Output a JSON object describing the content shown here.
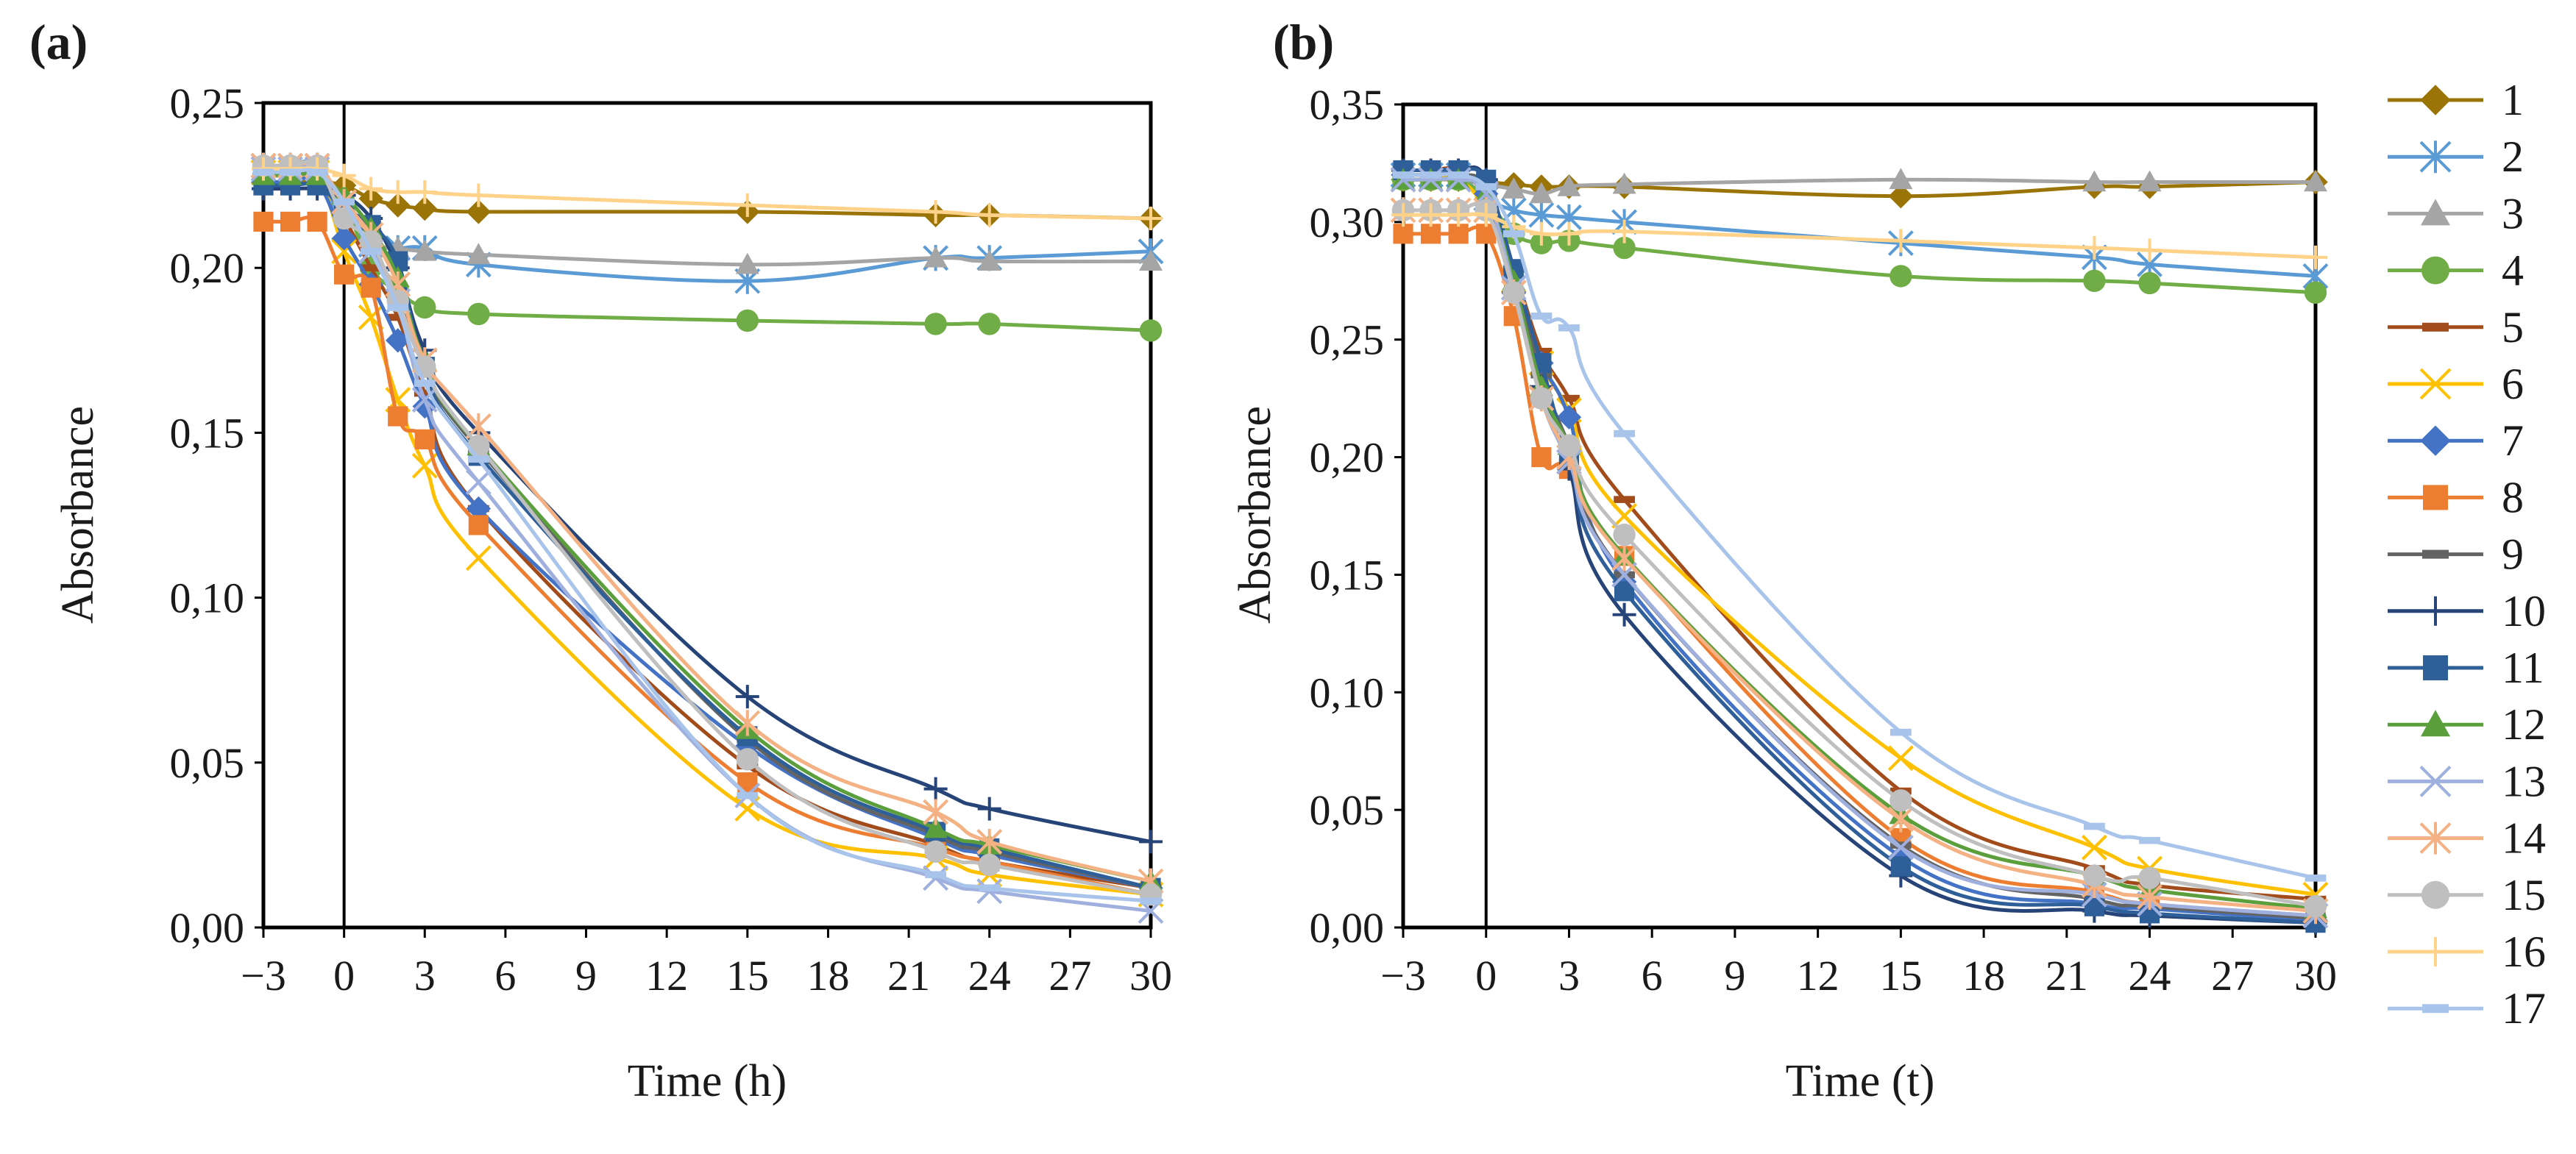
{
  "series_styles": [
    {
      "name": "1",
      "color": "#9a7407",
      "marker": "diamond"
    },
    {
      "name": "2",
      "color": "#5b9bd5",
      "marker": "asterisk"
    },
    {
      "name": "3",
      "color": "#a5a5a5",
      "marker": "triangle"
    },
    {
      "name": "4",
      "color": "#70ad47",
      "marker": "circle"
    },
    {
      "name": "5",
      "color": "#a24c1c",
      "marker": "dash"
    },
    {
      "name": "6",
      "color": "#ffc000",
      "marker": "x"
    },
    {
      "name": "7",
      "color": "#4472c4",
      "marker": "diamond"
    },
    {
      "name": "8",
      "color": "#ed7d31",
      "marker": "square"
    },
    {
      "name": "9",
      "color": "#636363",
      "marker": "dash"
    },
    {
      "name": "10",
      "color": "#264478",
      "marker": "plus"
    },
    {
      "name": "11",
      "color": "#2e5f98",
      "marker": "square"
    },
    {
      "name": "12",
      "color": "#5b9f3d",
      "marker": "triangle"
    },
    {
      "name": "13",
      "color": "#9fb0de",
      "marker": "x"
    },
    {
      "name": "14",
      "color": "#f4b183",
      "marker": "asterisk"
    },
    {
      "name": "15",
      "color": "#bfbfbf",
      "marker": "circle"
    },
    {
      "name": "16",
      "color": "#ffd28a",
      "marker": "plus"
    },
    {
      "name": "17",
      "color": "#a9c4ea",
      "marker": "dash"
    }
  ],
  "chart_data": [
    {
      "panel": "(a)",
      "type": "line",
      "xlabel": "Time (h)",
      "ylabel": "Absorbance",
      "xlim": [
        -3,
        30
      ],
      "ylim": [
        0,
        0.25
      ],
      "xticks": [
        -3,
        0,
        3,
        6,
        9,
        12,
        15,
        18,
        21,
        24,
        27,
        30
      ],
      "xtick_labels": [
        "−3",
        "0",
        "3",
        "6",
        "9",
        "12",
        "15",
        "18",
        "21",
        "24",
        "27",
        "30"
      ],
      "yticks": [
        0,
        0.05,
        0.1,
        0.15,
        0.2,
        0.25
      ],
      "ytick_labels": [
        "0,00",
        "0,05",
        "0,10",
        "0,15",
        "0,20",
        "0,25"
      ],
      "vline_x": 0,
      "x": [
        -3,
        -2,
        -1,
        0,
        1,
        2,
        3,
        5,
        15,
        22,
        24,
        30
      ],
      "series": [
        {
          "name": "1",
          "values": [
            0.226,
            0.226,
            0.226,
            0.225,
            0.221,
            0.219,
            0.218,
            0.217,
            0.217,
            0.216,
            0.216,
            0.215
          ]
        },
        {
          "name": "2",
          "values": [
            0.231,
            0.231,
            0.231,
            0.212,
            0.207,
            0.206,
            0.206,
            0.201,
            0.196,
            0.203,
            0.203,
            0.205
          ]
        },
        {
          "name": "3",
          "values": [
            0.23,
            0.23,
            0.23,
            0.22,
            0.208,
            0.206,
            0.205,
            0.204,
            0.201,
            0.203,
            0.202,
            0.202
          ]
        },
        {
          "name": "4",
          "values": [
            0.228,
            0.228,
            0.228,
            0.22,
            0.2,
            0.193,
            0.188,
            0.186,
            0.184,
            0.183,
            0.183,
            0.181
          ]
        },
        {
          "name": "5",
          "values": [
            0.228,
            0.228,
            0.228,
            0.215,
            0.2,
            0.185,
            0.162,
            0.127,
            0.049,
            0.025,
            0.02,
            0.012
          ]
        },
        {
          "name": "6",
          "values": [
            0.229,
            0.229,
            0.229,
            0.205,
            0.185,
            0.16,
            0.14,
            0.112,
            0.036,
            0.021,
            0.016,
            0.01
          ]
        },
        {
          "name": "7",
          "values": [
            0.226,
            0.226,
            0.226,
            0.209,
            0.195,
            0.178,
            0.158,
            0.127,
            0.055,
            0.027,
            0.022,
            0.012
          ]
        },
        {
          "name": "8",
          "values": [
            0.214,
            0.214,
            0.214,
            0.198,
            0.194,
            0.155,
            0.148,
            0.122,
            0.044,
            0.024,
            0.02,
            0.01
          ]
        },
        {
          "name": "9",
          "values": [
            0.228,
            0.228,
            0.228,
            0.22,
            0.205,
            0.19,
            0.17,
            0.145,
            0.057,
            0.028,
            0.023,
            0.012
          ]
        },
        {
          "name": "10",
          "values": [
            0.224,
            0.224,
            0.224,
            0.222,
            0.215,
            0.2,
            0.175,
            0.15,
            0.07,
            0.042,
            0.036,
            0.026
          ]
        },
        {
          "name": "11",
          "values": [
            0.225,
            0.225,
            0.225,
            0.218,
            0.213,
            0.202,
            0.17,
            0.143,
            0.058,
            0.029,
            0.024,
            0.012
          ]
        },
        {
          "name": "12",
          "values": [
            0.228,
            0.228,
            0.228,
            0.222,
            0.212,
            0.197,
            0.172,
            0.146,
            0.06,
            0.03,
            0.025,
            0.014
          ]
        },
        {
          "name": "13",
          "values": [
            0.23,
            0.23,
            0.23,
            0.22,
            0.205,
            0.19,
            0.16,
            0.135,
            0.04,
            0.015,
            0.011,
            0.005
          ]
        },
        {
          "name": "14",
          "values": [
            0.231,
            0.231,
            0.231,
            0.22,
            0.21,
            0.195,
            0.172,
            0.152,
            0.062,
            0.035,
            0.026,
            0.014
          ]
        },
        {
          "name": "15",
          "values": [
            0.231,
            0.231,
            0.231,
            0.215,
            0.208,
            0.19,
            0.17,
            0.146,
            0.051,
            0.023,
            0.019,
            0.01
          ]
        },
        {
          "name": "16",
          "values": [
            0.23,
            0.23,
            0.23,
            0.228,
            0.224,
            0.223,
            0.223,
            0.222,
            0.219,
            0.217,
            0.216,
            0.215
          ]
        },
        {
          "name": "17",
          "values": [
            0.229,
            0.229,
            0.229,
            0.22,
            0.205,
            0.188,
            0.165,
            0.142,
            0.04,
            0.016,
            0.012,
            0.008
          ]
        }
      ]
    },
    {
      "panel": "(b)",
      "type": "line",
      "xlabel": "Time (t)",
      "ylabel": "Absorbance",
      "xlim": [
        -3,
        30
      ],
      "ylim": [
        0,
        0.35
      ],
      "xticks": [
        -3,
        0,
        3,
        6,
        9,
        12,
        15,
        18,
        21,
        24,
        27,
        30
      ],
      "xtick_labels": [
        "−3",
        "0",
        "3",
        "6",
        "9",
        "12",
        "15",
        "18",
        "21",
        "24",
        "27",
        "30"
      ],
      "yticks": [
        0,
        0.05,
        0.1,
        0.15,
        0.2,
        0.25,
        0.3,
        0.35
      ],
      "ytick_labels": [
        "0,00",
        "0,05",
        "0,10",
        "0,15",
        "0,20",
        "0,25",
        "0,30",
        "0,35"
      ],
      "vline_x": 0,
      "x": [
        -3,
        -2,
        -1,
        0,
        1,
        2,
        3,
        5,
        15,
        22,
        24,
        30
      ],
      "series": [
        {
          "name": "1",
          "values": [
            0.318,
            0.318,
            0.318,
            0.317,
            0.316,
            0.315,
            0.315,
            0.315,
            0.311,
            0.315,
            0.315,
            0.317
          ]
        },
        {
          "name": "2",
          "values": [
            0.32,
            0.32,
            0.32,
            0.31,
            0.305,
            0.303,
            0.302,
            0.3,
            0.291,
            0.285,
            0.282,
            0.277
          ]
        },
        {
          "name": "3",
          "values": [
            0.318,
            0.318,
            0.318,
            0.316,
            0.314,
            0.312,
            0.315,
            0.316,
            0.318,
            0.317,
            0.317,
            0.317
          ]
        },
        {
          "name": "4",
          "values": [
            0.318,
            0.318,
            0.318,
            0.31,
            0.295,
            0.291,
            0.292,
            0.289,
            0.277,
            0.275,
            0.274,
            0.27
          ]
        },
        {
          "name": "5",
          "values": [
            0.322,
            0.322,
            0.322,
            0.31,
            0.28,
            0.245,
            0.225,
            0.182,
            0.058,
            0.025,
            0.018,
            0.012
          ]
        },
        {
          "name": "6",
          "values": [
            0.318,
            0.318,
            0.318,
            0.305,
            0.275,
            0.24,
            0.22,
            0.175,
            0.072,
            0.034,
            0.025,
            0.014
          ]
        },
        {
          "name": "7",
          "values": [
            0.32,
            0.32,
            0.32,
            0.312,
            0.27,
            0.24,
            0.217,
            0.147,
            0.03,
            0.01,
            0.008,
            0.003
          ]
        },
        {
          "name": "8",
          "values": [
            0.295,
            0.295,
            0.295,
            0.295,
            0.26,
            0.2,
            0.195,
            0.158,
            0.038,
            0.015,
            0.01,
            0.005
          ]
        },
        {
          "name": "9",
          "values": [
            0.32,
            0.32,
            0.32,
            0.315,
            0.28,
            0.235,
            0.205,
            0.15,
            0.035,
            0.012,
            0.009,
            0.004
          ]
        },
        {
          "name": "10",
          "values": [
            0.322,
            0.322,
            0.322,
            0.318,
            0.27,
            0.23,
            0.195,
            0.133,
            0.022,
            0.007,
            0.005,
            0.002
          ]
        },
        {
          "name": "11",
          "values": [
            0.322,
            0.322,
            0.322,
            0.318,
            0.28,
            0.24,
            0.2,
            0.143,
            0.026,
            0.009,
            0.006,
            0.002
          ]
        },
        {
          "name": "12",
          "values": [
            0.318,
            0.318,
            0.318,
            0.312,
            0.275,
            0.23,
            0.205,
            0.158,
            0.048,
            0.022,
            0.016,
            0.008
          ]
        },
        {
          "name": "13",
          "values": [
            0.318,
            0.318,
            0.318,
            0.312,
            0.272,
            0.225,
            0.198,
            0.15,
            0.034,
            0.014,
            0.01,
            0.005
          ]
        },
        {
          "name": "14",
          "values": [
            0.305,
            0.305,
            0.305,
            0.305,
            0.27,
            0.225,
            0.2,
            0.157,
            0.046,
            0.018,
            0.013,
            0.007
          ]
        },
        {
          "name": "15",
          "values": [
            0.305,
            0.305,
            0.305,
            0.305,
            0.27,
            0.225,
            0.205,
            0.167,
            0.054,
            0.022,
            0.021,
            0.009
          ]
        },
        {
          "name": "16",
          "values": [
            0.303,
            0.303,
            0.303,
            0.303,
            0.298,
            0.295,
            0.295,
            0.296,
            0.292,
            0.289,
            0.288,
            0.285
          ]
        },
        {
          "name": "17",
          "values": [
            0.32,
            0.32,
            0.32,
            0.315,
            0.295,
            0.26,
            0.255,
            0.21,
            0.083,
            0.043,
            0.037,
            0.021
          ]
        }
      ]
    }
  ],
  "legend": {
    "entries": [
      "1",
      "2",
      "3",
      "4",
      "5",
      "6",
      "7",
      "8",
      "9",
      "10",
      "11",
      "12",
      "13",
      "14",
      "15",
      "16",
      "17"
    ]
  }
}
